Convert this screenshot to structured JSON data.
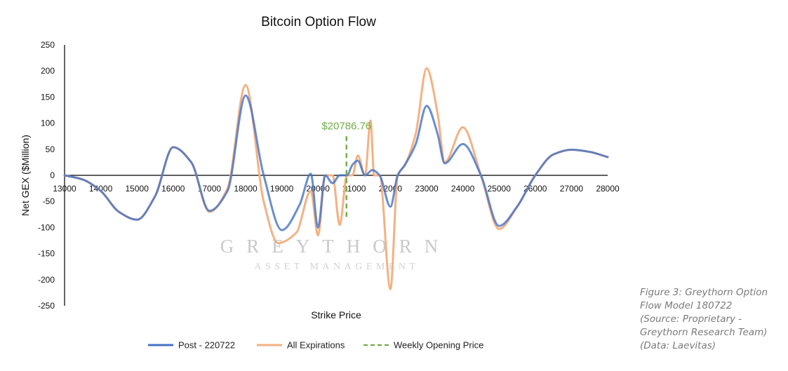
{
  "chart_data": {
    "type": "line",
    "title": "Bitcoin Option Flow",
    "xlabel": "Strike Price",
    "ylabel": "Net GEX ($Million)",
    "xlim": [
      13000,
      28000
    ],
    "ylim": [
      -250,
      250
    ],
    "x_ticks": [
      13000,
      14000,
      15000,
      16000,
      17000,
      18000,
      19000,
      20000,
      21000,
      22000,
      23000,
      24000,
      25000,
      26000,
      27000,
      28000
    ],
    "y_ticks": [
      250,
      200,
      150,
      100,
      50,
      0,
      -50,
      -100,
      -150,
      -200,
      -250
    ],
    "grid": false,
    "legend_position": "bottom",
    "series": [
      {
        "name": "Post - 220722",
        "color": "#4472c4",
        "x": [
          13000,
          13500,
          14000,
          14500,
          15000,
          15500,
          16000,
          16500,
          17000,
          17500,
          18000,
          18500,
          19000,
          19500,
          19800,
          20000,
          20200,
          20400,
          20600,
          20800,
          20950,
          21100,
          21300,
          21500,
          21700,
          22000,
          22200,
          22400,
          22700,
          23000,
          23300,
          23500,
          24000,
          24500,
          25000,
          25500,
          26000,
          26500,
          27000,
          27500,
          28000
        ],
        "y": [
          0,
          -8,
          -30,
          -70,
          -85,
          -40,
          54,
          25,
          -68,
          -30,
          153,
          0,
          -105,
          -55,
          3,
          -100,
          0,
          -15,
          0,
          0,
          20,
          28,
          0,
          10,
          0,
          -60,
          0,
          20,
          60,
          133,
          80,
          23,
          60,
          0,
          -97,
          -60,
          0,
          40,
          49,
          45,
          35
        ]
      },
      {
        "name": "All Expirations",
        "color": "#f4b183",
        "x": [
          13000,
          13500,
          14000,
          14500,
          15000,
          15500,
          16000,
          16500,
          17000,
          17500,
          18000,
          18500,
          18900,
          19400,
          19800,
          20000,
          20200,
          20400,
          20600,
          20800,
          20950,
          21100,
          21300,
          21450,
          21550,
          21700,
          22000,
          22200,
          22400,
          22700,
          23000,
          23300,
          23500,
          24000,
          24500,
          25000,
          25500,
          26000,
          26500,
          27000,
          27500,
          28000
        ],
        "y": [
          0,
          -8,
          -30,
          -70,
          -85,
          -40,
          54,
          25,
          -70,
          -25,
          173,
          -50,
          -130,
          -110,
          -30,
          -115,
          0,
          0,
          -95,
          0,
          0,
          38,
          0,
          105,
          0,
          0,
          -218,
          0,
          20,
          80,
          205,
          120,
          25,
          92,
          0,
          -103,
          -60,
          0,
          40,
          49,
          45,
          35
        ]
      },
      {
        "name": "Weekly Opening Price",
        "color": "#70ad47",
        "style": "dashed",
        "x": [
          20786.76,
          20786.76
        ],
        "y": [
          75,
          -82
        ]
      }
    ],
    "annotations": [
      {
        "text": "$20786.76",
        "x": 20786.76,
        "y": 95
      }
    ]
  },
  "watermark": {
    "main": "GREYTHORN",
    "sub": "ASSET MANAGEMENT"
  },
  "caption": {
    "lines": [
      "Figure 3: Greythorn Option",
      "Flow Model 180722",
      "(Source: Proprietary -",
      "Greythorn Research Team)",
      "(Data: Laevitas)"
    ]
  }
}
